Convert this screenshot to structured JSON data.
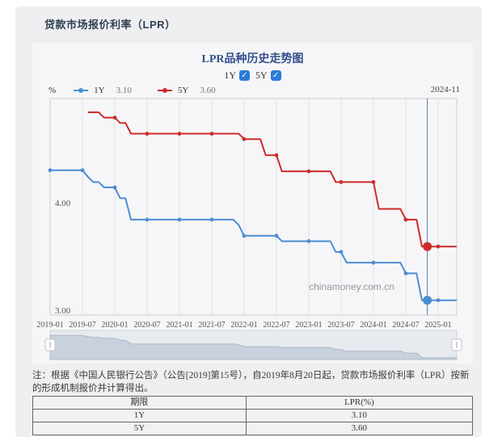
{
  "page_title": "贷款市场报价利率（LPR）",
  "chart": {
    "title": "LPR品种历史走势图",
    "toggles": [
      {
        "label": "1Y",
        "checked": true,
        "check_glyph": "✓"
      },
      {
        "label": "5Y",
        "checked": true,
        "check_glyph": "✓"
      }
    ],
    "unit_label": "%",
    "legend": [
      {
        "name": "1Y",
        "value": "3.10",
        "color": "#4d8dd2"
      },
      {
        "name": "5Y",
        "value": "3.60",
        "color": "#cd2b2b"
      }
    ],
    "hover_date": "2024-11",
    "watermark": "chinamoney.com.cn",
    "colors": {
      "series_1y": "#4d8dd2",
      "series_5y": "#cd2b2b",
      "highlight_line": "#4d7f9e",
      "grid": "#e2e2e5",
      "plot_border": "#cfcfd2",
      "axis_text": "#555555",
      "watermark_text": "#97999e",
      "slider_bg": "#e7eaef",
      "slider_fill": "#c8d1dd",
      "slider_line": "#aeb9c7",
      "checkbox_blue": "#2b7bd9"
    }
  },
  "chart_data": {
    "type": "line",
    "title": "LPR品种历史走势图",
    "ylabel": "%",
    "x_start": "2019-01",
    "x_end": "2025-04",
    "x_ticks": [
      "2019-01",
      "2019-07",
      "2020-01",
      "2020-07",
      "2021-01",
      "2021-07",
      "2022-01",
      "2022-07",
      "2023-01",
      "2023-07",
      "2024-01",
      "2024-07",
      "2025-01"
    ],
    "y_tick_labels": [
      "4.00",
      "3.00"
    ],
    "y_tick_values": [
      4.0,
      3.0
    ],
    "ylim": [
      2.96,
      4.98
    ],
    "grid": "vertical-only",
    "legend_position": "top",
    "highlight_x": "2024-11",
    "series": [
      {
        "name": "1Y",
        "color": "#4d8dd2",
        "current": 3.1,
        "changes": [
          [
            "2019-01",
            4.31
          ],
          [
            "2019-08",
            4.25
          ],
          [
            "2019-09",
            4.2
          ],
          [
            "2019-11",
            4.15
          ],
          [
            "2020-02",
            4.05
          ],
          [
            "2020-04",
            3.85
          ],
          [
            "2021-12",
            3.8
          ],
          [
            "2022-01",
            3.7
          ],
          [
            "2022-08",
            3.65
          ],
          [
            "2023-06",
            3.55
          ],
          [
            "2023-08",
            3.45
          ],
          [
            "2024-07",
            3.35
          ],
          [
            "2024-10",
            3.1
          ]
        ]
      },
      {
        "name": "5Y",
        "color": "#cd2b2b",
        "current": 3.6,
        "changes": [
          [
            "2019-08",
            4.85
          ],
          [
            "2019-11",
            4.8
          ],
          [
            "2020-02",
            4.75
          ],
          [
            "2020-04",
            4.65
          ],
          [
            "2022-01",
            4.6
          ],
          [
            "2022-05",
            4.45
          ],
          [
            "2022-08",
            4.3
          ],
          [
            "2023-06",
            4.2
          ],
          [
            "2024-02",
            3.95
          ],
          [
            "2024-07",
            3.85
          ],
          [
            "2024-10",
            3.6
          ]
        ]
      }
    ]
  },
  "note": "注：根据《中国人民银行公告》（公告[2019]第15号），自2019年8月20日起，贷款市场报价利率（LPR）按新的形成机制报价并计算得出。",
  "table": {
    "headers": [
      "期限",
      "LPR(%)"
    ],
    "rows": [
      [
        "1Y",
        "3.10"
      ],
      [
        "5Y",
        "3.60"
      ]
    ]
  }
}
